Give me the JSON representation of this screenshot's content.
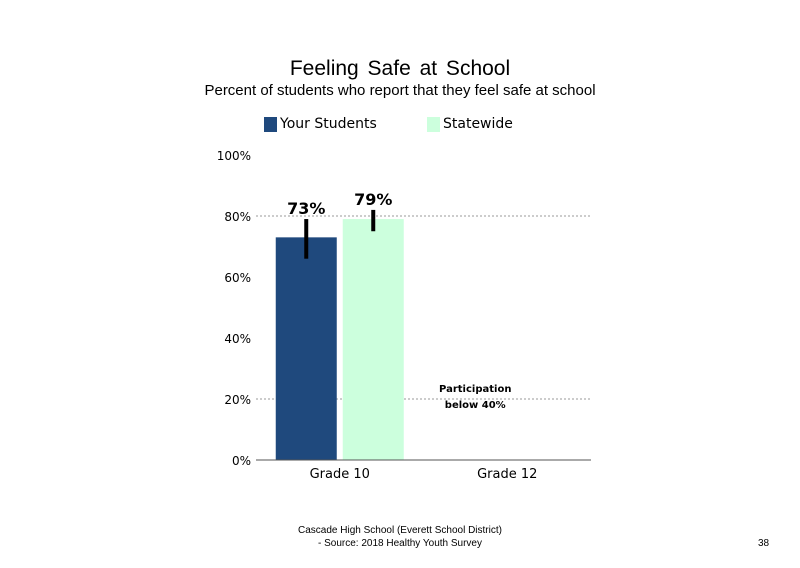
{
  "chart_data": {
    "type": "bar",
    "title": "Feeling  Safe at School",
    "subtitle": "Percent of students who report that they feel safe at school",
    "categories": [
      "Grade 10",
      "Grade 12"
    ],
    "series": [
      {
        "name": "Your Students",
        "color": "#1f497d",
        "values": [
          73,
          null
        ],
        "error": [
          [
            66,
            79
          ],
          null
        ],
        "labels": [
          "73%",
          ""
        ]
      },
      {
        "name": "Statewide",
        "color": "#ccffdd",
        "values": [
          79,
          null
        ],
        "error": [
          [
            75,
            82
          ],
          null
        ],
        "labels": [
          "79%",
          ""
        ]
      }
    ],
    "yticks": [
      "0%",
      "20%",
      "40%",
      "60%",
      "80%",
      "100%"
    ],
    "ylim": [
      0,
      100
    ],
    "gridlines": [
      20,
      80
    ],
    "legend": "top",
    "annotation": {
      "category": "Grade 12",
      "lines": [
        "Participation",
        "below 40%"
      ]
    }
  },
  "footer": {
    "line1": "Cascade High School (Everett School District)",
    "line2": "- Source: 2018 Healthy  Youth Survey"
  },
  "page_number": "38"
}
